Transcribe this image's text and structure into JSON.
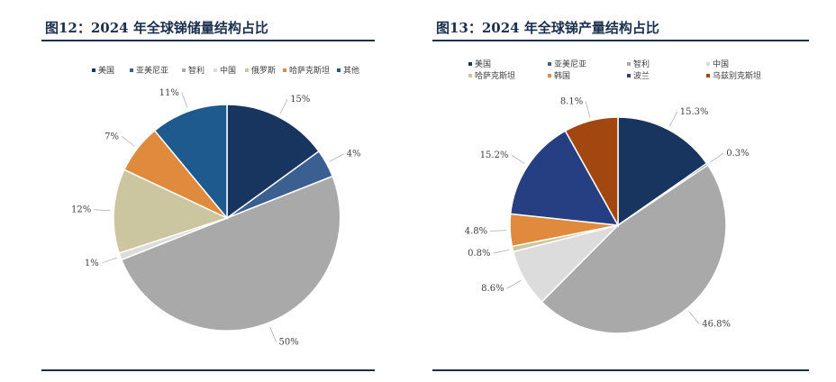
{
  "charts": [
    {
      "title": "图12：2024 年全球锑储量结构占比",
      "chart_data": {
        "type": "pie",
        "title": "图12：2024 年全球锑储量结构占比",
        "legend_position": "top",
        "slices": [
          {
            "name": "美国",
            "value": 15,
            "label": "15%",
            "color": "#17355e"
          },
          {
            "name": "亚美尼亚",
            "value": 4,
            "label": "4%",
            "color": "#3c5f92"
          },
          {
            "name": "智利",
            "value": 50,
            "label": "50%",
            "color": "#a9a9a9"
          },
          {
            "name": "中国",
            "value": 1,
            "label": "1%",
            "color": "#dcdcdc"
          },
          {
            "name": "俄罗斯",
            "value": 12,
            "label": "12%",
            "color": "#cbc6a0"
          },
          {
            "name": "哈萨克斯坦",
            "value": 7,
            "label": "7%",
            "color": "#e08a3e"
          },
          {
            "name": "其他",
            "value": 11,
            "label": "11%",
            "color": "#1f5a8e"
          }
        ]
      }
    },
    {
      "title": "图13：2024 年全球锑产量结构占比",
      "chart_data": {
        "type": "pie",
        "title": "图13：2024 年全球锑产量结构占比",
        "legend_position": "top",
        "slices": [
          {
            "name": "美国",
            "value": 15.3,
            "label": "15.3%",
            "color": "#17355e"
          },
          {
            "name": "亚美尼亚",
            "value": 0.3,
            "label": "0.3%",
            "color": "#3c5f92"
          },
          {
            "name": "智利",
            "value": 46.8,
            "label": "46.8%",
            "color": "#a9a9a9"
          },
          {
            "name": "中国",
            "value": 8.6,
            "label": "8.6%",
            "color": "#dcdcdc"
          },
          {
            "name": "哈萨克斯坦",
            "value": 0.8,
            "label": "0.8%",
            "color": "#cbc6a0"
          },
          {
            "name": "韩国",
            "value": 4.8,
            "label": "4.8%",
            "color": "#e08a3e"
          },
          {
            "name": "波兰",
            "value": 15.2,
            "label": "15.2%",
            "color": "#253f82"
          },
          {
            "name": "乌兹别克斯坦",
            "value": 8.1,
            "label": "8.1%",
            "color": "#a1470f"
          }
        ]
      }
    }
  ]
}
